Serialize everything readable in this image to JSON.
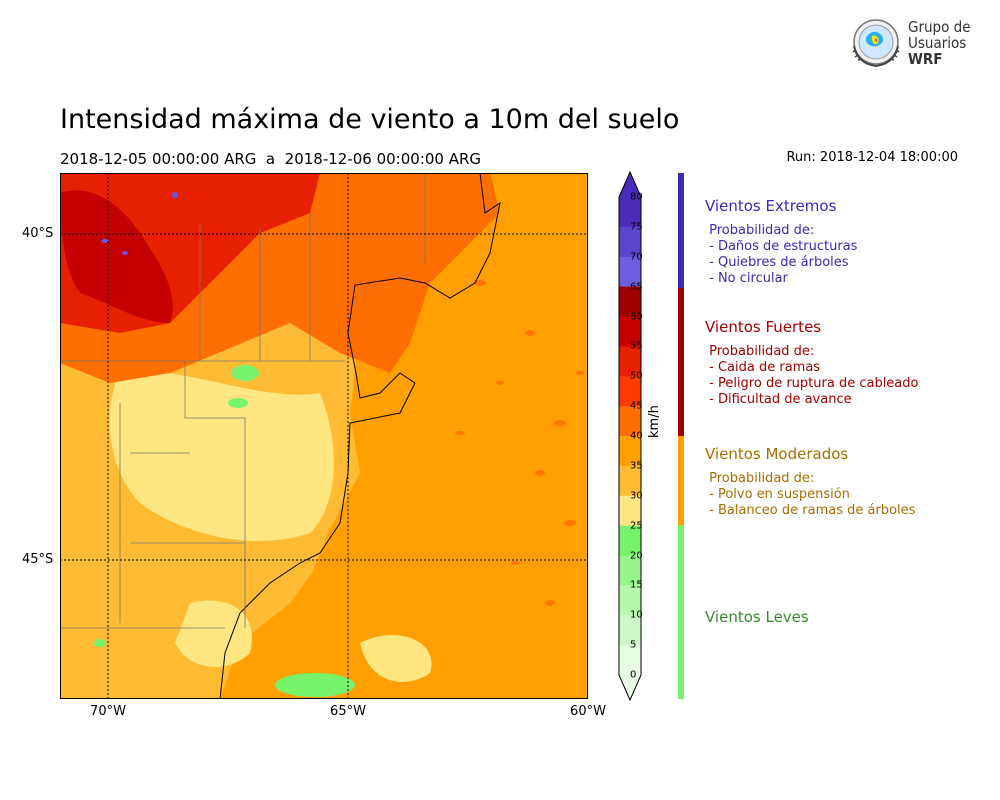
{
  "header": {
    "title": "Intensidad máxima de viento a 10m del suelo",
    "period": "2018-12-05 00:00:00 ARG  a  2018-12-06 00:00:00 ARG",
    "run": "Run: 2018-12-04 18:00:00"
  },
  "logo": {
    "line1": "Grupo de",
    "line2": "Usuarios",
    "line3": "WRF",
    "icon": "globe-seal-icon"
  },
  "map": {
    "lat_labels": [
      "40°S",
      "45°S"
    ],
    "lon_labels": [
      "70°W",
      "65°W",
      "60°W"
    ],
    "extent": {
      "lon_min": -71,
      "lon_max": -60,
      "lat_min": -47.1,
      "lat_max": -39.1
    },
    "colors": {
      "land_base": "#ffbb33",
      "sea_base": "#ffa000",
      "low_wind": "#ffe680",
      "mid_wind": "#ff6e00",
      "high_wind": "#e62000",
      "extreme_wind": "#c40000",
      "calm": "#77f26b",
      "violet": "#6b55dd"
    }
  },
  "colorbar": {
    "unit": "km/h",
    "ticks": [
      "80",
      "75",
      "70",
      "65",
      "60",
      "55",
      "50",
      "45",
      "40",
      "35",
      "30",
      "25",
      "20",
      "15",
      "10",
      "5",
      "0"
    ],
    "colors_top_to_bottom": [
      "#4a2cb8",
      "#5a45cc",
      "#6e5ee0",
      "#a00000",
      "#c40000",
      "#e62000",
      "#ff3a00",
      "#ff6e00",
      "#ffa000",
      "#ffbb33",
      "#ffe680",
      "#77f26b",
      "#96f58c",
      "#b5f7ad",
      "#cdf9c8",
      "#e6fce4"
    ]
  },
  "categories": [
    {
      "title": "Vientos Extremos",
      "color": "#3a2ab5",
      "items": [
        " Probabilidad de:",
        " - Daños de estructuras",
        " - Quiebres de árboles",
        " - No circular"
      ]
    },
    {
      "title": "Vientos Fuertes",
      "color": "#a00000",
      "items": [
        " Probabilidad de:",
        " - Caida de ramas",
        " - Peligro de ruptura de cableado",
        " - Dificultad de avance"
      ]
    },
    {
      "title": "Vientos Moderados",
      "color": "#a86d00",
      "items": [
        " Probabilidad de:",
        " - Polvo en suspensión",
        " - Balanceo de ramas de árboles"
      ]
    },
    {
      "title": "Vientos Leves",
      "color": "#3a8a33",
      "items": []
    }
  ],
  "category_bar_colors": [
    "#3a2ab5",
    "#a00000",
    "#ffa000",
    "#77f26b"
  ]
}
